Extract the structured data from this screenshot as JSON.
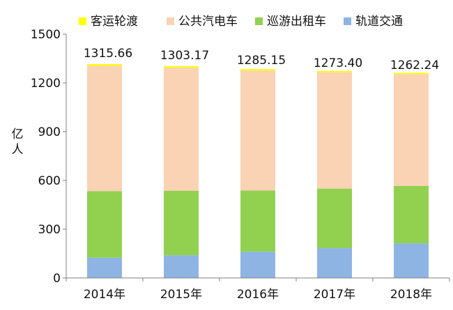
{
  "chart_data": {
    "type": "bar",
    "stacked": true,
    "categories": [
      "2014年",
      "2015年",
      "2016年",
      "2017年",
      "2018年"
    ],
    "ylabel": "亿\n人",
    "ylim": [
      0,
      1500
    ],
    "yticks": [
      0,
      300,
      600,
      900,
      1200,
      1500
    ],
    "grid": false,
    "legend_position": "top",
    "totals": [
      "1315.66",
      "1303.17",
      "1285.15",
      "1273.40",
      "1262.24"
    ],
    "series": [
      {
        "name": "轨道交通",
        "color": "#8EB4E3",
        "values": [
          125,
          140,
          162,
          184,
          213
        ]
      },
      {
        "name": "巡游出租车",
        "color": "#92D050",
        "values": [
          409,
          397,
          376,
          366,
          353
        ]
      },
      {
        "name": "公共汽电车",
        "color": "#FAD2B4",
        "values": [
          772,
          757,
          738,
          715,
          688
        ]
      },
      {
        "name": "客运轮渡",
        "color": "#FFFF00",
        "values": [
          9.66,
          9.17,
          9.15,
          8.4,
          8.24
        ]
      }
    ],
    "legend_order": [
      "客运轮渡",
      "公共汽电车",
      "巡游出租车",
      "轨道交通"
    ]
  }
}
